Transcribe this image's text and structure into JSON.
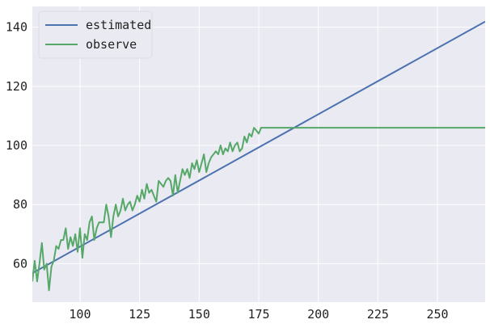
{
  "chart_data": {
    "type": "line",
    "title": "",
    "xlabel": "",
    "ylabel": "",
    "xlim": [
      80,
      270
    ],
    "ylim": [
      47,
      147
    ],
    "grid": true,
    "legend": "top-left",
    "x_ticks": [
      100,
      125,
      150,
      175,
      200,
      225,
      250
    ],
    "y_ticks": [
      60,
      80,
      100,
      120,
      140
    ],
    "colors": {
      "background": "#eaeaf2",
      "grid": "#ffffff",
      "estimated": "#4c72b0",
      "observe": "#55a868"
    },
    "series": [
      {
        "name": "estimated",
        "x": [
          80,
          270
        ],
        "y": [
          56.8,
          141.9
        ]
      },
      {
        "name": "observe",
        "x": [
          80,
          81,
          82,
          83,
          84,
          85,
          86,
          87,
          88,
          89,
          90,
          91,
          92,
          93,
          94,
          95,
          96,
          97,
          98,
          99,
          100,
          101,
          102,
          103,
          104,
          105,
          106,
          107,
          108,
          109,
          110,
          111,
          112,
          113,
          114,
          115,
          116,
          117,
          118,
          119,
          120,
          121,
          122,
          123,
          124,
          125,
          126,
          127,
          128,
          129,
          130,
          131,
          132,
          133,
          134,
          135,
          136,
          137,
          138,
          139,
          140,
          141,
          142,
          143,
          144,
          145,
          146,
          147,
          148,
          149,
          150,
          151,
          152,
          153,
          154,
          155,
          156,
          157,
          158,
          159,
          160,
          161,
          162,
          163,
          164,
          165,
          166,
          167,
          168,
          169,
          170,
          171,
          172,
          173,
          174,
          175,
          176,
          177,
          178,
          179,
          180,
          270
        ],
        "y": [
          54,
          61,
          54,
          60,
          67,
          58,
          60,
          51,
          59,
          61,
          66,
          65,
          68,
          68,
          72,
          65,
          69,
          66,
          70,
          64,
          72,
          62,
          70,
          68,
          74,
          76,
          68,
          72,
          74,
          74,
          74,
          80,
          76,
          69,
          76,
          80,
          76,
          78,
          82,
          78,
          80,
          81,
          78,
          80,
          83,
          81,
          85,
          82,
          87,
          84,
          85,
          83,
          81,
          88,
          87,
          86,
          88,
          89,
          88,
          83,
          90,
          84,
          88,
          92,
          90,
          92,
          89,
          94,
          92,
          95,
          91,
          94,
          97,
          91,
          94,
          96,
          97,
          98,
          97,
          100,
          97,
          99,
          98,
          101,
          98,
          100,
          101,
          98,
          99,
          103,
          101,
          104,
          103,
          106,
          105,
          104,
          106,
          106,
          106,
          106,
          106,
          106
        ]
      }
    ]
  }
}
